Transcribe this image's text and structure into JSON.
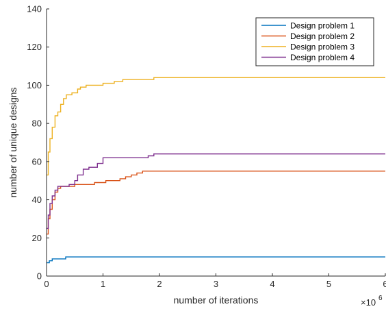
{
  "chart_data": {
    "type": "line",
    "xlabel": "number of iterations",
    "ylabel": "number of unique designs",
    "x_exponent_base": "×10",
    "x_exponent_power": "6",
    "xlim": [
      0,
      6
    ],
    "ylim": [
      0,
      140
    ],
    "xticks": [
      "0",
      "1",
      "2",
      "3",
      "4",
      "5",
      "6"
    ],
    "yticks": [
      "0",
      "20",
      "40",
      "60",
      "80",
      "100",
      "120",
      "140"
    ],
    "legend_position": "top-right",
    "grid": false,
    "series": [
      {
        "name": "Design problem 1",
        "color": "#0072BD",
        "x": [
          0,
          0.05,
          0.1,
          0.2,
          0.3,
          0.34,
          6
        ],
        "y": [
          7,
          8,
          9,
          9,
          9,
          10,
          10
        ]
      },
      {
        "name": "Design problem 2",
        "color": "#D95319",
        "x": [
          0,
          0.03,
          0.06,
          0.1,
          0.15,
          0.2,
          0.25,
          0.35,
          0.5,
          0.7,
          0.85,
          1.0,
          1.05,
          1.2,
          1.3,
          1.4,
          1.5,
          1.6,
          1.7,
          6
        ],
        "y": [
          22,
          30,
          35,
          40,
          44,
          46,
          47,
          47,
          48,
          48,
          49,
          49,
          50,
          50,
          51,
          52,
          53,
          54,
          55,
          55
        ]
      },
      {
        "name": "Design problem 3",
        "color": "#EDB120",
        "x": [
          0,
          0.03,
          0.06,
          0.1,
          0.15,
          0.2,
          0.25,
          0.3,
          0.35,
          0.45,
          0.55,
          0.6,
          0.7,
          0.8,
          1.0,
          1.2,
          1.35,
          1.5,
          1.9,
          2.0,
          6
        ],
        "y": [
          53,
          65,
          72,
          78,
          84,
          86,
          90,
          93,
          95,
          96,
          98,
          99,
          100,
          100,
          101,
          102,
          103,
          103,
          104,
          104,
          104
        ]
      },
      {
        "name": "Design problem 4",
        "color": "#7E2F8E",
        "x": [
          0,
          0.03,
          0.06,
          0.1,
          0.15,
          0.2,
          0.3,
          0.4,
          0.5,
          0.55,
          0.65,
          0.75,
          0.9,
          1.0,
          1.2,
          1.5,
          1.8,
          1.9,
          6
        ],
        "y": [
          25,
          32,
          38,
          42,
          45,
          47,
          47,
          48,
          50,
          53,
          56,
          57,
          59,
          62,
          62,
          62,
          63,
          64,
          64
        ]
      }
    ]
  }
}
